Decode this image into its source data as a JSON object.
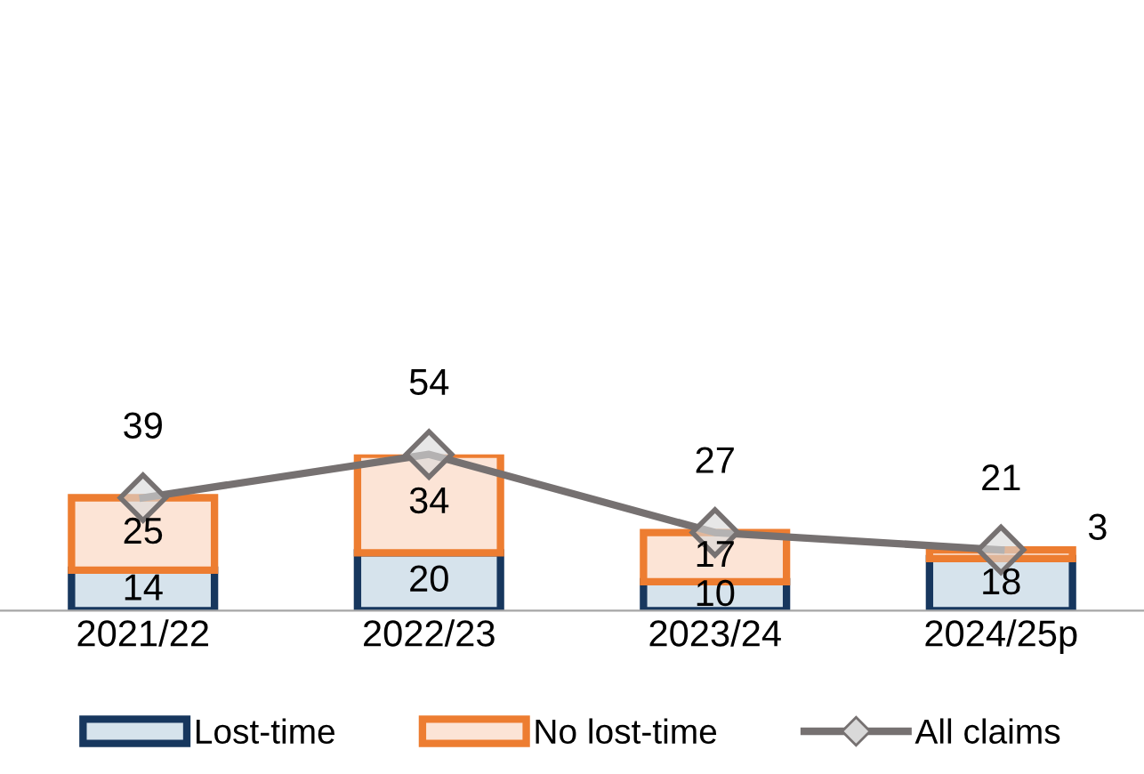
{
  "chart_data": {
    "type": "bar",
    "stacked": true,
    "categories": [
      "2021/22",
      "2022/23",
      "2023/24",
      "2024/25p"
    ],
    "series": [
      {
        "name": "Lost-time",
        "color": "#d6e3ec",
        "values": [
          14,
          20,
          10,
          18
        ]
      },
      {
        "name": "No lost-time",
        "color": "#fce4d6",
        "values": [
          25,
          34,
          17,
          3
        ]
      },
      {
        "name": "All claims",
        "type": "line",
        "color": "#767171",
        "marker": "diamond",
        "values": [
          39,
          54,
          27,
          21
        ]
      }
    ],
    "tick_labels": "x",
    "data_labels": true,
    "legend": "bottom",
    "grid": false
  }
}
